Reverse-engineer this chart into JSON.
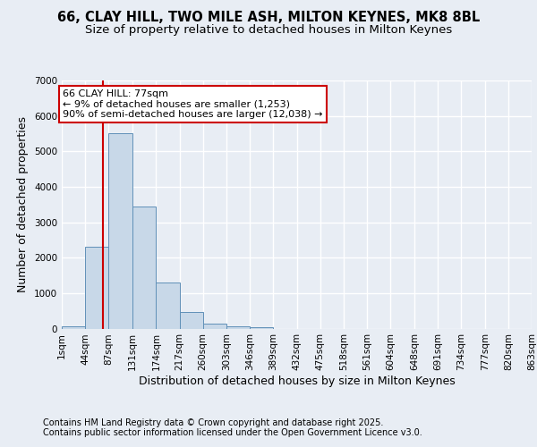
{
  "title1": "66, CLAY HILL, TWO MILE ASH, MILTON KEYNES, MK8 8BL",
  "title2": "Size of property relative to detached houses in Milton Keynes",
  "xlabel": "Distribution of detached houses by size in Milton Keynes",
  "ylabel": "Number of detached properties",
  "bin_edges": [
    1,
    44,
    87,
    131,
    174,
    217,
    260,
    303,
    346,
    389,
    432,
    475,
    518,
    561,
    604,
    648,
    691,
    734,
    777,
    820,
    863
  ],
  "bar_heights": [
    75,
    2300,
    5500,
    3450,
    1300,
    475,
    150,
    75,
    50,
    0,
    0,
    0,
    0,
    0,
    0,
    0,
    0,
    0,
    0,
    0
  ],
  "bar_color": "#c8d8e8",
  "bar_edgecolor": "#6090b8",
  "property_size": 77,
  "redline_color": "#cc0000",
  "annotation_text": "66 CLAY HILL: 77sqm\n← 9% of detached houses are smaller (1,253)\n90% of semi-detached houses are larger (12,038) →",
  "annotation_box_facecolor": "#ffffff",
  "annotation_box_edgecolor": "#cc0000",
  "ylim": [
    0,
    7000
  ],
  "yticks": [
    0,
    1000,
    2000,
    3000,
    4000,
    5000,
    6000,
    7000
  ],
  "background_color": "#e8edf4",
  "grid_color": "#ffffff",
  "footer1": "Contains HM Land Registry data © Crown copyright and database right 2025.",
  "footer2": "Contains public sector information licensed under the Open Government Licence v3.0.",
  "tick_labels": [
    "1sqm",
    "44sqm",
    "87sqm",
    "131sqm",
    "174sqm",
    "217sqm",
    "260sqm",
    "303sqm",
    "346sqm",
    "389sqm",
    "432sqm",
    "475sqm",
    "518sqm",
    "561sqm",
    "604sqm",
    "648sqm",
    "691sqm",
    "734sqm",
    "777sqm",
    "820sqm",
    "863sqm"
  ],
  "title_fontsize": 10.5,
  "subtitle_fontsize": 9.5,
  "axis_label_fontsize": 9,
  "tick_fontsize": 7.5,
  "annotation_fontsize": 8,
  "footer_fontsize": 7
}
